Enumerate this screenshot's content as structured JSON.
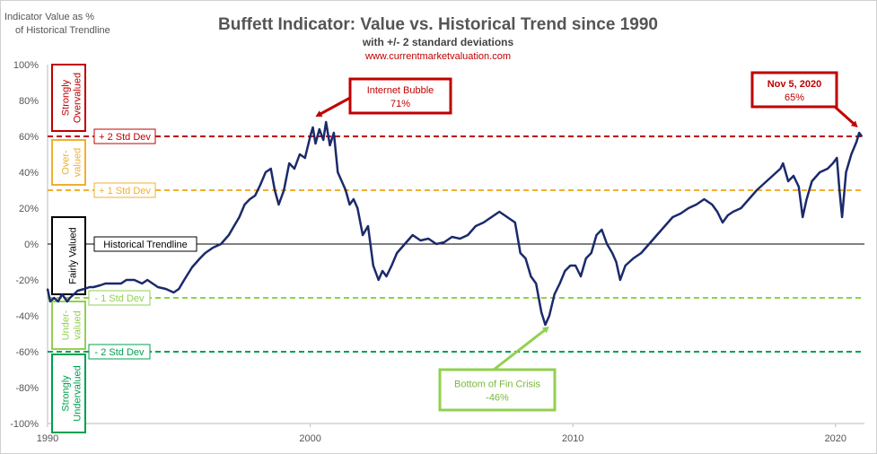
{
  "header": {
    "ylabel_line1": "Indicator Value as %",
    "ylabel_line2": "of Historical Trendline",
    "title": "Buffett Indicator: Value vs. Historical Trend since 1990",
    "subtitle": "with +/- 2 standard deviations",
    "source": "www.currentmarketvaluation.com"
  },
  "colors": {
    "line": "#1b2a6b",
    "strongly_overvalued": "#c00000",
    "overvalued": "#f0b030",
    "fairly_valued": "#000000",
    "undervalued": "#92d050",
    "strongly_undervalued": "#00a050"
  },
  "bands": [
    {
      "id": "strongly-overvalued",
      "label_line1": "Strongly",
      "label_line2": "Overvalued",
      "color": "#c00000"
    },
    {
      "id": "overvalued",
      "label_line1": "Over-",
      "label_line2": "valued",
      "color": "#f0b030"
    },
    {
      "id": "fairly-valued",
      "label_line1": "Fairly Valued",
      "label_line2": "",
      "color": "#000000"
    },
    {
      "id": "undervalued",
      "label_line1": "Under-",
      "label_line2": "valued",
      "color": "#92d050"
    },
    {
      "id": "strongly-undervalued",
      "label_line1": "Strongly",
      "label_line2": "Undervalued",
      "color": "#00a050"
    }
  ],
  "reference_lines": [
    {
      "id": "plus-2-std",
      "value": 60,
      "label": "+ 2 Std Dev",
      "color": "#c00000"
    },
    {
      "id": "plus-1-std",
      "value": 30,
      "label": "+ 1 Std Dev",
      "color": "#f0b030"
    },
    {
      "id": "trendline",
      "value": 0,
      "label": "Historical Trendline",
      "color": "#000000"
    },
    {
      "id": "minus-1-std",
      "value": -30,
      "label": "- 1 Std Dev",
      "color": "#92d050"
    },
    {
      "id": "minus-2-std",
      "value": -60,
      "label": "- 2 Std Dev",
      "color": "#00a050"
    }
  ],
  "annotations": [
    {
      "id": "internet-bubble",
      "line1": "Internet Bubble",
      "line2": "71%",
      "x": 2000.2,
      "y": 71,
      "color": "#c00000"
    },
    {
      "id": "nov-2020",
      "line1": "Nov 5, 2020",
      "line2": "65%",
      "x": 2020.85,
      "y": 65,
      "color": "#c00000"
    },
    {
      "id": "fin-crisis",
      "line1": "Bottom  of Fin Crisis",
      "line2": "-46%",
      "x": 2009.1,
      "y": -46,
      "color": "#92d050"
    }
  ],
  "chart_data": {
    "type": "line",
    "title": "Buffett Indicator: Value vs. Historical Trend since 1990",
    "subtitle": "with +/- 2 standard deviations",
    "ylabel": "Indicator Value as % of Historical Trendline",
    "xlabel": "",
    "xlim": [
      1990,
      2021.1
    ],
    "ylim": [
      -100,
      100
    ],
    "x_ticks": [
      1990,
      2000,
      2010,
      2020
    ],
    "y_ticks": [
      100,
      80,
      60,
      40,
      20,
      0,
      -20,
      -40,
      -60,
      -80,
      -100
    ],
    "y_tick_labels": [
      "100%",
      "80%",
      "60%",
      "40%",
      "20%",
      "0%",
      "-20%",
      "-40%",
      "-60%",
      "-80%",
      "-100%"
    ],
    "grid": false,
    "series": [
      {
        "x": [
          1990.0,
          1990.1,
          1990.25,
          1990.4,
          1990.55,
          1990.75,
          1990.85,
          1991.0,
          1991.15,
          1991.4,
          1991.6,
          1991.75,
          1992.0,
          1992.2,
          1992.5,
          1992.8,
          1993.0,
          1993.3,
          1993.6,
          1993.8,
          1994.0,
          1994.2,
          1994.5,
          1994.8,
          1995.0,
          1995.2,
          1995.5,
          1995.8,
          1996.0,
          1996.3,
          1996.6,
          1996.9,
          1997.1,
          1997.3,
          1997.5,
          1997.7,
          1997.9,
          1998.1,
          1998.3,
          1998.5,
          1998.65,
          1998.8,
          1999.0,
          1999.2,
          1999.4,
          1999.6,
          1999.8,
          2000.0,
          2000.1,
          2000.2,
          2000.35,
          2000.5,
          2000.6,
          2000.75,
          2000.9,
          2001.05,
          2001.2,
          2001.35,
          2001.5,
          2001.65,
          2001.8,
          2002.0,
          2002.2,
          2002.4,
          2002.6,
          2002.75,
          2002.9,
          2003.1,
          2003.3,
          2003.6,
          2003.9,
          2004.2,
          2004.5,
          2004.8,
          2005.1,
          2005.4,
          2005.7,
          2006.0,
          2006.3,
          2006.6,
          2006.9,
          2007.2,
          2007.5,
          2007.8,
          2008.0,
          2008.2,
          2008.4,
          2008.6,
          2008.8,
          2008.95,
          2009.1,
          2009.3,
          2009.5,
          2009.7,
          2009.9,
          2010.1,
          2010.3,
          2010.5,
          2010.7,
          2010.9,
          2011.1,
          2011.3,
          2011.5,
          2011.65,
          2011.8,
          2012.0,
          2012.3,
          2012.6,
          2012.9,
          2013.2,
          2013.5,
          2013.8,
          2014.1,
          2014.4,
          2014.7,
          2015.0,
          2015.3,
          2015.5,
          2015.7,
          2015.9,
          2016.1,
          2016.4,
          2016.7,
          2017.0,
          2017.3,
          2017.6,
          2017.9,
          2018.0,
          2018.2,
          2018.4,
          2018.6,
          2018.75,
          2018.9,
          2019.1,
          2019.4,
          2019.7,
          2019.9,
          2020.05,
          2020.15,
          2020.25,
          2020.4,
          2020.6,
          2020.8,
          2020.9,
          2021.0
        ],
        "values": [
          -25,
          -32,
          -30,
          -32,
          -28,
          -32,
          -30,
          -28,
          -26,
          -25,
          -24,
          -24,
          -23,
          -22,
          -22,
          -22,
          -20,
          -20,
          -22,
          -20,
          -22,
          -24,
          -25,
          -27,
          -25,
          -20,
          -13,
          -8,
          -5,
          -2,
          0,
          5,
          10,
          15,
          22,
          25,
          27,
          33,
          40,
          42,
          30,
          22,
          30,
          45,
          42,
          50,
          48,
          60,
          65,
          56,
          64,
          58,
          68,
          55,
          62,
          40,
          35,
          30,
          22,
          25,
          20,
          5,
          10,
          -12,
          -20,
          -15,
          -18,
          -12,
          -5,
          0,
          5,
          2,
          3,
          0,
          1,
          4,
          3,
          5,
          10,
          12,
          15,
          18,
          15,
          12,
          -5,
          -8,
          -18,
          -22,
          -38,
          -45,
          -40,
          -28,
          -22,
          -15,
          -12,
          -12,
          -18,
          -8,
          -5,
          5,
          8,
          0,
          -5,
          -10,
          -20,
          -12,
          -8,
          -5,
          0,
          5,
          10,
          15,
          17,
          20,
          22,
          25,
          22,
          18,
          12,
          16,
          18,
          20,
          25,
          30,
          34,
          38,
          42,
          45,
          35,
          38,
          32,
          15,
          25,
          35,
          40,
          42,
          45,
          48,
          30,
          15,
          40,
          50,
          57,
          62,
          60
        ]
      }
    ]
  }
}
